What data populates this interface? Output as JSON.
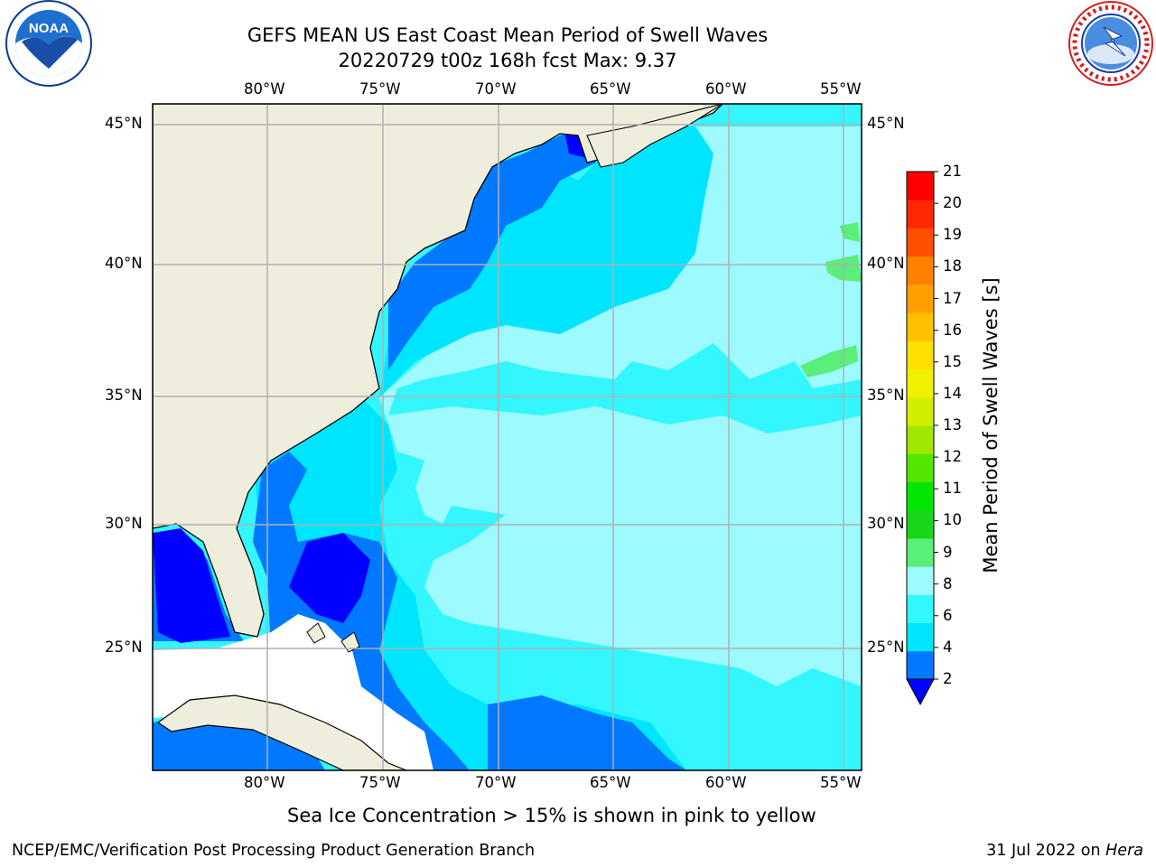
{
  "header": {
    "title": "GEFS MEAN US East Coast Mean Period of Swell Waves",
    "subtitle": "20220729 t00z 168h fcst    Max: 9.37"
  },
  "logos": {
    "left": {
      "text": "NOAA",
      "ring_text": "NATIONAL OCEANIC AND ATMOSPHERIC ADMINISTRATION · U.S. DEPARTMENT OF COMMERCE"
    },
    "right": {
      "ring_text": "NATIONAL WEATHER SERVICE"
    }
  },
  "map": {
    "lon_labels": [
      "80°W",
      "75°W",
      "70°W",
      "65°W",
      "60°W",
      "55°W"
    ],
    "lat_labels": [
      "45°N",
      "40°N",
      "35°N",
      "30°N",
      "25°N"
    ],
    "colors": {
      "land": "#efeedc",
      "no_data": "#ffffff",
      "grid": "#b0b0b0"
    }
  },
  "colorbar": {
    "label": "Mean Period of Swell Waves [s]",
    "ticks": [
      "21",
      "20",
      "19",
      "18",
      "17",
      "16",
      "15",
      "14",
      "13",
      "12",
      "11",
      "10",
      "9",
      "8",
      "6",
      "4",
      "2"
    ],
    "colors": [
      "#0000ff",
      "#0078ff",
      "#00e5ff",
      "#33f6ff",
      "#9dfaff",
      "#5aee7a",
      "#1ad61a",
      "#00e600",
      "#55e600",
      "#a0e600",
      "#d2ee00",
      "#f0f000",
      "#ffe000",
      "#ffc000",
      "#ffa000",
      "#ff8000",
      "#ff5000",
      "#ff2800",
      "#ff0000"
    ]
  },
  "note": "Sea Ice Concentration > 15% is shown in pink to yellow",
  "footer": {
    "left": "NCEP/EMC/Verification Post Processing Product Generation Branch",
    "right_date": "31 Jul 2022 on ",
    "right_host": "Hera"
  }
}
